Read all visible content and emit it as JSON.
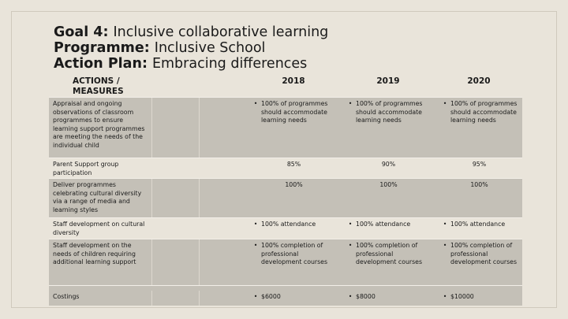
{
  "titles": {
    "goal_label": "Goal 4:",
    "goal_value": "Inclusive collaborative learning",
    "programme_label": "Programme:",
    "programme_value": "Inclusive School",
    "plan_label": "Action Plan:",
    "plan_value": "Embracing differences"
  },
  "header": {
    "col0": "ACTIONS / MEASURES",
    "col1": "2018",
    "col2": "2019",
    "col3": "2020"
  },
  "rows": [
    {
      "action": "Appraisal and ongoing observations of classroom programmes to ensure learning support programmes are meeting the needs of the individual child",
      "y2018": "100% of programmes should accommodate learning needs",
      "y2019": "100% of programmes should accommodate learning needs",
      "y2020": "100% of programmes should accommodate learning needs"
    },
    {
      "action": "Parent Support group participation",
      "y2018": "85%",
      "y2019": "90%",
      "y2020": "95%"
    },
    {
      "action": "Deliver programmes celebrating cultural diversity via a range of media and learning styles",
      "y2018": "100%",
      "y2019": "100%",
      "y2020": "100%"
    },
    {
      "action": "Staff development on cultural diversity",
      "y2018": "100% attendance",
      "y2019": "100% attendance",
      "y2020": "100% attendance"
    },
    {
      "action": "Staff development on the needs of children requiring additional learning support",
      "y2018": "100% completion of professional development courses",
      "y2019": "100% completion of professional development courses",
      "y2020": "100% completion of professional development courses"
    },
    {
      "action": "Costings",
      "y2018": "$6000",
      "y2019": "$8000",
      "y2020": "$10000"
    }
  ],
  "bullet": "•"
}
